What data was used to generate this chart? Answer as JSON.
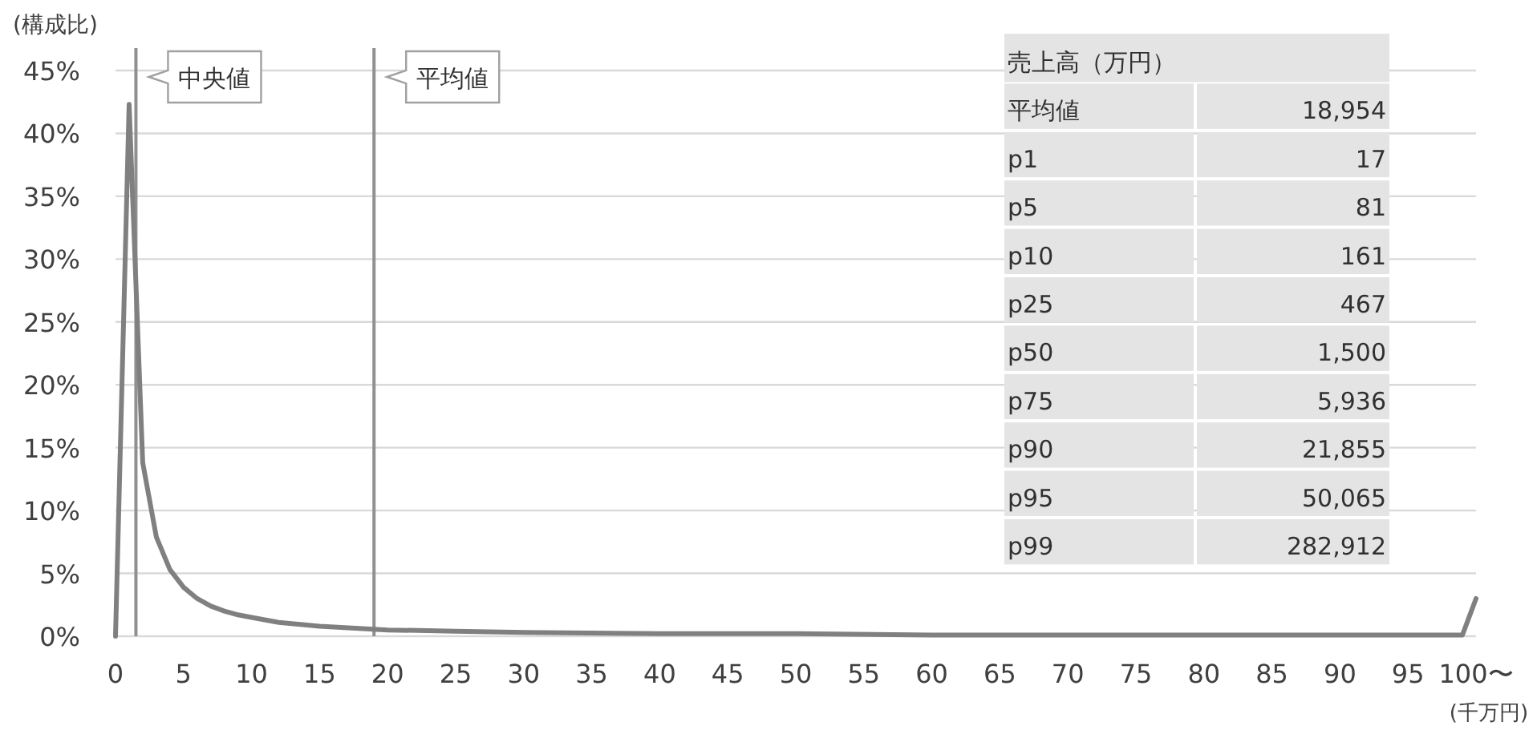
{
  "chart_data": {
    "type": "line",
    "ylabel": "(構成比)",
    "xlabel": "(千万円)",
    "x": [
      0,
      1,
      2,
      3,
      4,
      5,
      6,
      7,
      8,
      9,
      10,
      12,
      15,
      20,
      25,
      30,
      40,
      50,
      60,
      70,
      80,
      90,
      99,
      100
    ],
    "series": [
      {
        "color": "#808080",
        "values": [
          0,
          42.3,
          13.8,
          7.9,
          5.3,
          3.9,
          3.0,
          2.4,
          2.0,
          1.7,
          1.5,
          1.1,
          0.8,
          0.5,
          0.4,
          0.3,
          0.2,
          0.2,
          0.1,
          0.1,
          0.1,
          0.1,
          0.1,
          3.0
        ]
      }
    ],
    "xlim": [
      0,
      100
    ],
    "ylim": [
      0,
      45
    ],
    "xticks": [
      0,
      5,
      10,
      15,
      20,
      25,
      30,
      35,
      40,
      45,
      50,
      55,
      60,
      65,
      70,
      75,
      80,
      85,
      90,
      95,
      {
        "value": 100,
        "label": "100〜"
      }
    ],
    "yticks": [
      {
        "value": 0,
        "label": "0%"
      },
      {
        "value": 5,
        "label": "5%"
      },
      {
        "value": 10,
        "label": "10%"
      },
      {
        "value": 15,
        "label": "15%"
      },
      {
        "value": 20,
        "label": "20%"
      },
      {
        "value": 25,
        "label": "25%"
      },
      {
        "value": 30,
        "label": "30%"
      },
      {
        "value": 35,
        "label": "35%"
      },
      {
        "value": 40,
        "label": "40%"
      },
      {
        "value": 45,
        "label": "45%"
      }
    ],
    "grid": "y",
    "ref_lines": [
      {
        "axis": "x",
        "value": 1.5,
        "label": "中央値",
        "color": "#909090"
      },
      {
        "axis": "x",
        "value": 19,
        "label": "平均値",
        "color": "#909090"
      }
    ],
    "annotations": [
      "売上高（万円）",
      "平均値",
      "18,954",
      "p1",
      "17",
      "p5",
      "81",
      "p10",
      "161",
      "p25",
      "467",
      "p50",
      "1,500",
      "p75",
      "5,936",
      "p90",
      "21,855",
      "p95",
      "50,065",
      "p99",
      "282,912"
    ]
  }
}
